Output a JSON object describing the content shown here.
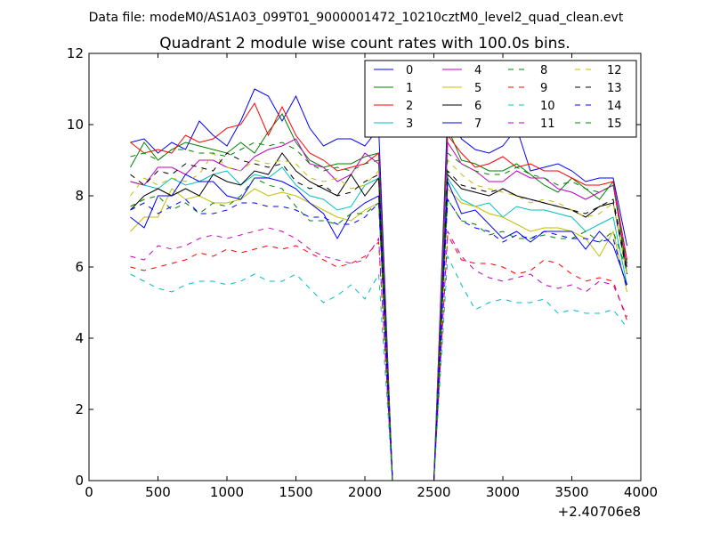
{
  "figure": {
    "suptitle": "Data file: modeM0/AS1A03_099T01_9000001472_10210cztM0_level2_quad_clean.evt",
    "background": "#ffffff"
  },
  "chart_data": {
    "type": "line",
    "title": "Quadrant 2 module wise count rates with 100.0s bins.",
    "xlabel": "",
    "ylabel": "",
    "xlim": [
      0,
      4000
    ],
    "ylim": [
      0,
      12
    ],
    "x_offset_label": "+2.40706e8",
    "xticks": [
      0,
      500,
      1000,
      1500,
      2000,
      2500,
      3000,
      3500,
      4000
    ],
    "yticks": [
      0,
      2,
      4,
      6,
      8,
      10,
      12
    ],
    "grid": false,
    "legend_position": "top-right",
    "legend_columns": 4,
    "x": [
      300,
      400,
      500,
      600,
      700,
      800,
      900,
      1000,
      1100,
      1200,
      1300,
      1400,
      1500,
      1600,
      1700,
      1800,
      1900,
      2000,
      2100,
      2200,
      2300,
      2400,
      2500,
      2600,
      2700,
      2800,
      2900,
      3000,
      3100,
      3200,
      3300,
      3400,
      3500,
      3600,
      3700,
      3800,
      3900
    ],
    "series": [
      {
        "name": "0",
        "color": "#0000ff",
        "style": "solid",
        "values": [
          9.5,
          9.6,
          9.2,
          9.5,
          9.3,
          10.1,
          9.7,
          9.4,
          10.1,
          11.0,
          10.8,
          10.1,
          10.8,
          9.9,
          9.4,
          9.6,
          9.6,
          9.4,
          9.9,
          0,
          0,
          0,
          0,
          10.4,
          9.6,
          9.3,
          9.2,
          9.4,
          9.9,
          8.7,
          8.8,
          8.9,
          8.7,
          8.4,
          8.5,
          8.5,
          6.6
        ]
      },
      {
        "name": "1",
        "color": "#008000",
        "style": "solid",
        "values": [
          8.8,
          9.5,
          9.0,
          9.3,
          9.5,
          9.4,
          9.3,
          9.2,
          9.5,
          9.2,
          9.8,
          10.3,
          9.5,
          9.0,
          8.8,
          8.9,
          8.9,
          9.1,
          9.2,
          0,
          0,
          0,
          0,
          9.9,
          9.0,
          8.9,
          8.7,
          8.7,
          8.9,
          8.6,
          8.3,
          8.1,
          8.5,
          8.2,
          7.9,
          8.4,
          5.8
        ]
      },
      {
        "name": "2",
        "color": "#ff0000",
        "style": "solid",
        "values": [
          9.5,
          9.2,
          9.3,
          9.2,
          9.7,
          9.5,
          9.6,
          9.9,
          10.0,
          10.6,
          9.7,
          10.5,
          9.7,
          9.2,
          9.0,
          8.7,
          8.8,
          8.9,
          9.2,
          0,
          0,
          0,
          0,
          9.7,
          9.2,
          8.8,
          8.9,
          9.1,
          8.8,
          8.9,
          8.7,
          8.7,
          8.5,
          8.3,
          8.3,
          8.4,
          6.2
        ]
      },
      {
        "name": "3",
        "color": "#00bfbf",
        "style": "solid",
        "values": [
          8.4,
          8.3,
          8.2,
          8.5,
          8.3,
          8.4,
          8.6,
          8.7,
          8.3,
          8.6,
          8.5,
          8.8,
          8.3,
          8.0,
          7.9,
          7.6,
          7.7,
          8.3,
          8.5,
          0,
          0,
          0,
          0,
          8.5,
          7.9,
          7.7,
          7.8,
          7.4,
          7.7,
          7.6,
          7.6,
          7.5,
          7.4,
          7.0,
          7.2,
          7.4,
          5.5
        ]
      },
      {
        "name": "4",
        "color": "#bf00bf",
        "style": "solid",
        "values": [
          8.4,
          8.3,
          8.8,
          8.8,
          8.6,
          9.0,
          9.0,
          8.8,
          8.7,
          9.1,
          9.3,
          9.4,
          9.6,
          8.9,
          8.8,
          8.4,
          8.6,
          9.2,
          8.9,
          0,
          0,
          0,
          0,
          9.5,
          8.9,
          8.7,
          8.4,
          8.4,
          8.7,
          8.5,
          8.5,
          8.2,
          8.1,
          7.9,
          8.1,
          8.3,
          6.0
        ]
      },
      {
        "name": "5",
        "color": "#bfbf00",
        "style": "solid",
        "values": [
          7.0,
          7.4,
          7.4,
          8.2,
          7.9,
          8.0,
          7.8,
          7.8,
          7.9,
          8.2,
          8.0,
          8.1,
          8.0,
          7.8,
          7.6,
          7.4,
          7.3,
          7.6,
          7.8,
          0,
          0,
          0,
          0,
          8.2,
          7.8,
          7.7,
          7.5,
          7.4,
          7.2,
          7.0,
          7.1,
          7.1,
          7.0,
          6.8,
          6.3,
          7.0,
          5.3
        ]
      },
      {
        "name": "6",
        "color": "#000000",
        "style": "solid",
        "values": [
          7.6,
          8.0,
          8.2,
          8.0,
          8.2,
          8.0,
          8.6,
          8.4,
          8.3,
          8.7,
          8.6,
          9.2,
          8.7,
          8.4,
          8.2,
          8.0,
          8.6,
          8.0,
          8.5,
          0,
          0,
          0,
          0,
          8.6,
          8.2,
          8.1,
          8.0,
          8.2,
          8.0,
          7.9,
          7.8,
          7.7,
          7.6,
          7.4,
          7.7,
          7.8,
          5.8
        ]
      },
      {
        "name": "7",
        "color": "#0000ff",
        "style": "solid",
        "values": [
          7.4,
          7.1,
          8.0,
          8.0,
          8.6,
          8.4,
          8.4,
          8.0,
          7.9,
          8.5,
          8.5,
          8.4,
          8.2,
          7.8,
          7.5,
          6.8,
          7.5,
          7.8,
          8.0,
          0,
          0,
          0,
          0,
          8.4,
          7.5,
          7.6,
          7.2,
          6.8,
          7.0,
          6.7,
          7.0,
          7.0,
          7.0,
          6.5,
          7.0,
          6.6,
          5.5
        ]
      },
      {
        "name": "8",
        "color": "#008000",
        "style": "dashed",
        "values": [
          7.7,
          7.9,
          8.0,
          7.6,
          7.8,
          7.5,
          7.8,
          7.7,
          8.0,
          8.5,
          8.3,
          8.2,
          7.7,
          7.3,
          7.3,
          7.2,
          7.5,
          7.5,
          7.8,
          0,
          0,
          0,
          0,
          7.9,
          7.3,
          7.2,
          6.9,
          7.0,
          6.8,
          6.8,
          6.9,
          6.8,
          6.8,
          7.0,
          6.7,
          7.0,
          5.9
        ]
      },
      {
        "name": "9",
        "color": "#ff0000",
        "style": "dashed",
        "values": [
          6.0,
          5.9,
          6.0,
          6.1,
          6.2,
          6.4,
          6.3,
          6.5,
          6.4,
          6.5,
          6.6,
          6.5,
          6.6,
          6.4,
          6.2,
          6.0,
          6.1,
          6.3,
          6.7,
          0,
          0,
          0,
          0,
          6.9,
          6.2,
          6.1,
          6.1,
          6.0,
          5.8,
          5.9,
          6.2,
          6.1,
          5.8,
          5.6,
          5.7,
          5.6,
          4.5
        ]
      },
      {
        "name": "10",
        "color": "#00bfbf",
        "style": "dashed",
        "values": [
          5.8,
          5.6,
          5.4,
          5.3,
          5.5,
          5.6,
          5.6,
          5.5,
          5.6,
          5.8,
          5.6,
          5.6,
          5.8,
          5.4,
          5.0,
          5.2,
          5.5,
          5.1,
          5.8,
          0,
          0,
          0,
          0,
          6.3,
          5.5,
          4.8,
          5.0,
          5.1,
          5.0,
          5.0,
          5.1,
          4.7,
          4.8,
          4.7,
          4.7,
          4.8,
          4.3
        ]
      },
      {
        "name": "11",
        "color": "#bf00bf",
        "style": "dashed",
        "values": [
          6.3,
          6.2,
          6.6,
          6.5,
          6.6,
          6.8,
          6.9,
          6.8,
          6.9,
          7.0,
          7.1,
          7.0,
          6.8,
          6.5,
          6.3,
          6.2,
          6.1,
          6.2,
          6.8,
          0,
          0,
          0,
          0,
          7.0,
          6.3,
          5.9,
          5.7,
          5.6,
          5.7,
          5.8,
          5.5,
          5.4,
          5.5,
          5.3,
          5.6,
          5.5,
          4.6
        ]
      },
      {
        "name": "12",
        "color": "#bfbf00",
        "style": "dashed",
        "values": [
          8.0,
          8.5,
          8.3,
          8.5,
          8.4,
          8.6,
          9.2,
          8.8,
          8.7,
          9.0,
          8.9,
          9.0,
          8.9,
          8.5,
          8.4,
          8.5,
          8.2,
          8.3,
          8.7,
          0,
          0,
          0,
          0,
          9.0,
          8.6,
          8.3,
          8.2,
          8.1,
          8.0,
          7.8,
          7.9,
          7.8,
          7.6,
          7.4,
          7.5,
          7.8,
          5.8
        ]
      },
      {
        "name": "13",
        "color": "#000000",
        "style": "dashed",
        "values": [
          8.6,
          8.3,
          8.7,
          8.6,
          8.9,
          8.8,
          8.7,
          9.2,
          9.0,
          8.9,
          8.8,
          8.9,
          8.4,
          8.2,
          8.3,
          8.0,
          8.1,
          8.4,
          8.6,
          0,
          0,
          0,
          0,
          8.7,
          8.3,
          8.2,
          8.1,
          8.2,
          8.0,
          7.9,
          7.8,
          7.7,
          7.6,
          7.5,
          7.7,
          7.9,
          5.9
        ]
      },
      {
        "name": "14",
        "color": "#0000ff",
        "style": "dashed",
        "values": [
          7.6,
          7.8,
          7.5,
          7.7,
          7.9,
          7.5,
          7.5,
          7.6,
          7.8,
          7.8,
          7.7,
          7.7,
          7.6,
          7.4,
          7.4,
          7.2,
          7.2,
          7.4,
          7.8,
          0,
          0,
          0,
          0,
          7.9,
          7.3,
          7.1,
          7.0,
          6.7,
          6.9,
          6.8,
          7.0,
          6.9,
          6.8,
          6.8,
          6.7,
          6.8,
          5.4
        ]
      },
      {
        "name": "15",
        "color": "#008000",
        "style": "dashed",
        "values": [
          9.1,
          9.2,
          9.0,
          9.3,
          9.3,
          9.2,
          9.2,
          9.1,
          9.3,
          9.5,
          9.4,
          9.5,
          9.3,
          8.9,
          8.7,
          8.8,
          8.7,
          8.9,
          9.0,
          0,
          0,
          0,
          0,
          9.2,
          8.9,
          8.7,
          8.6,
          8.6,
          8.8,
          8.6,
          8.5,
          8.3,
          8.4,
          8.2,
          8.1,
          8.3,
          6.1
        ]
      }
    ]
  }
}
